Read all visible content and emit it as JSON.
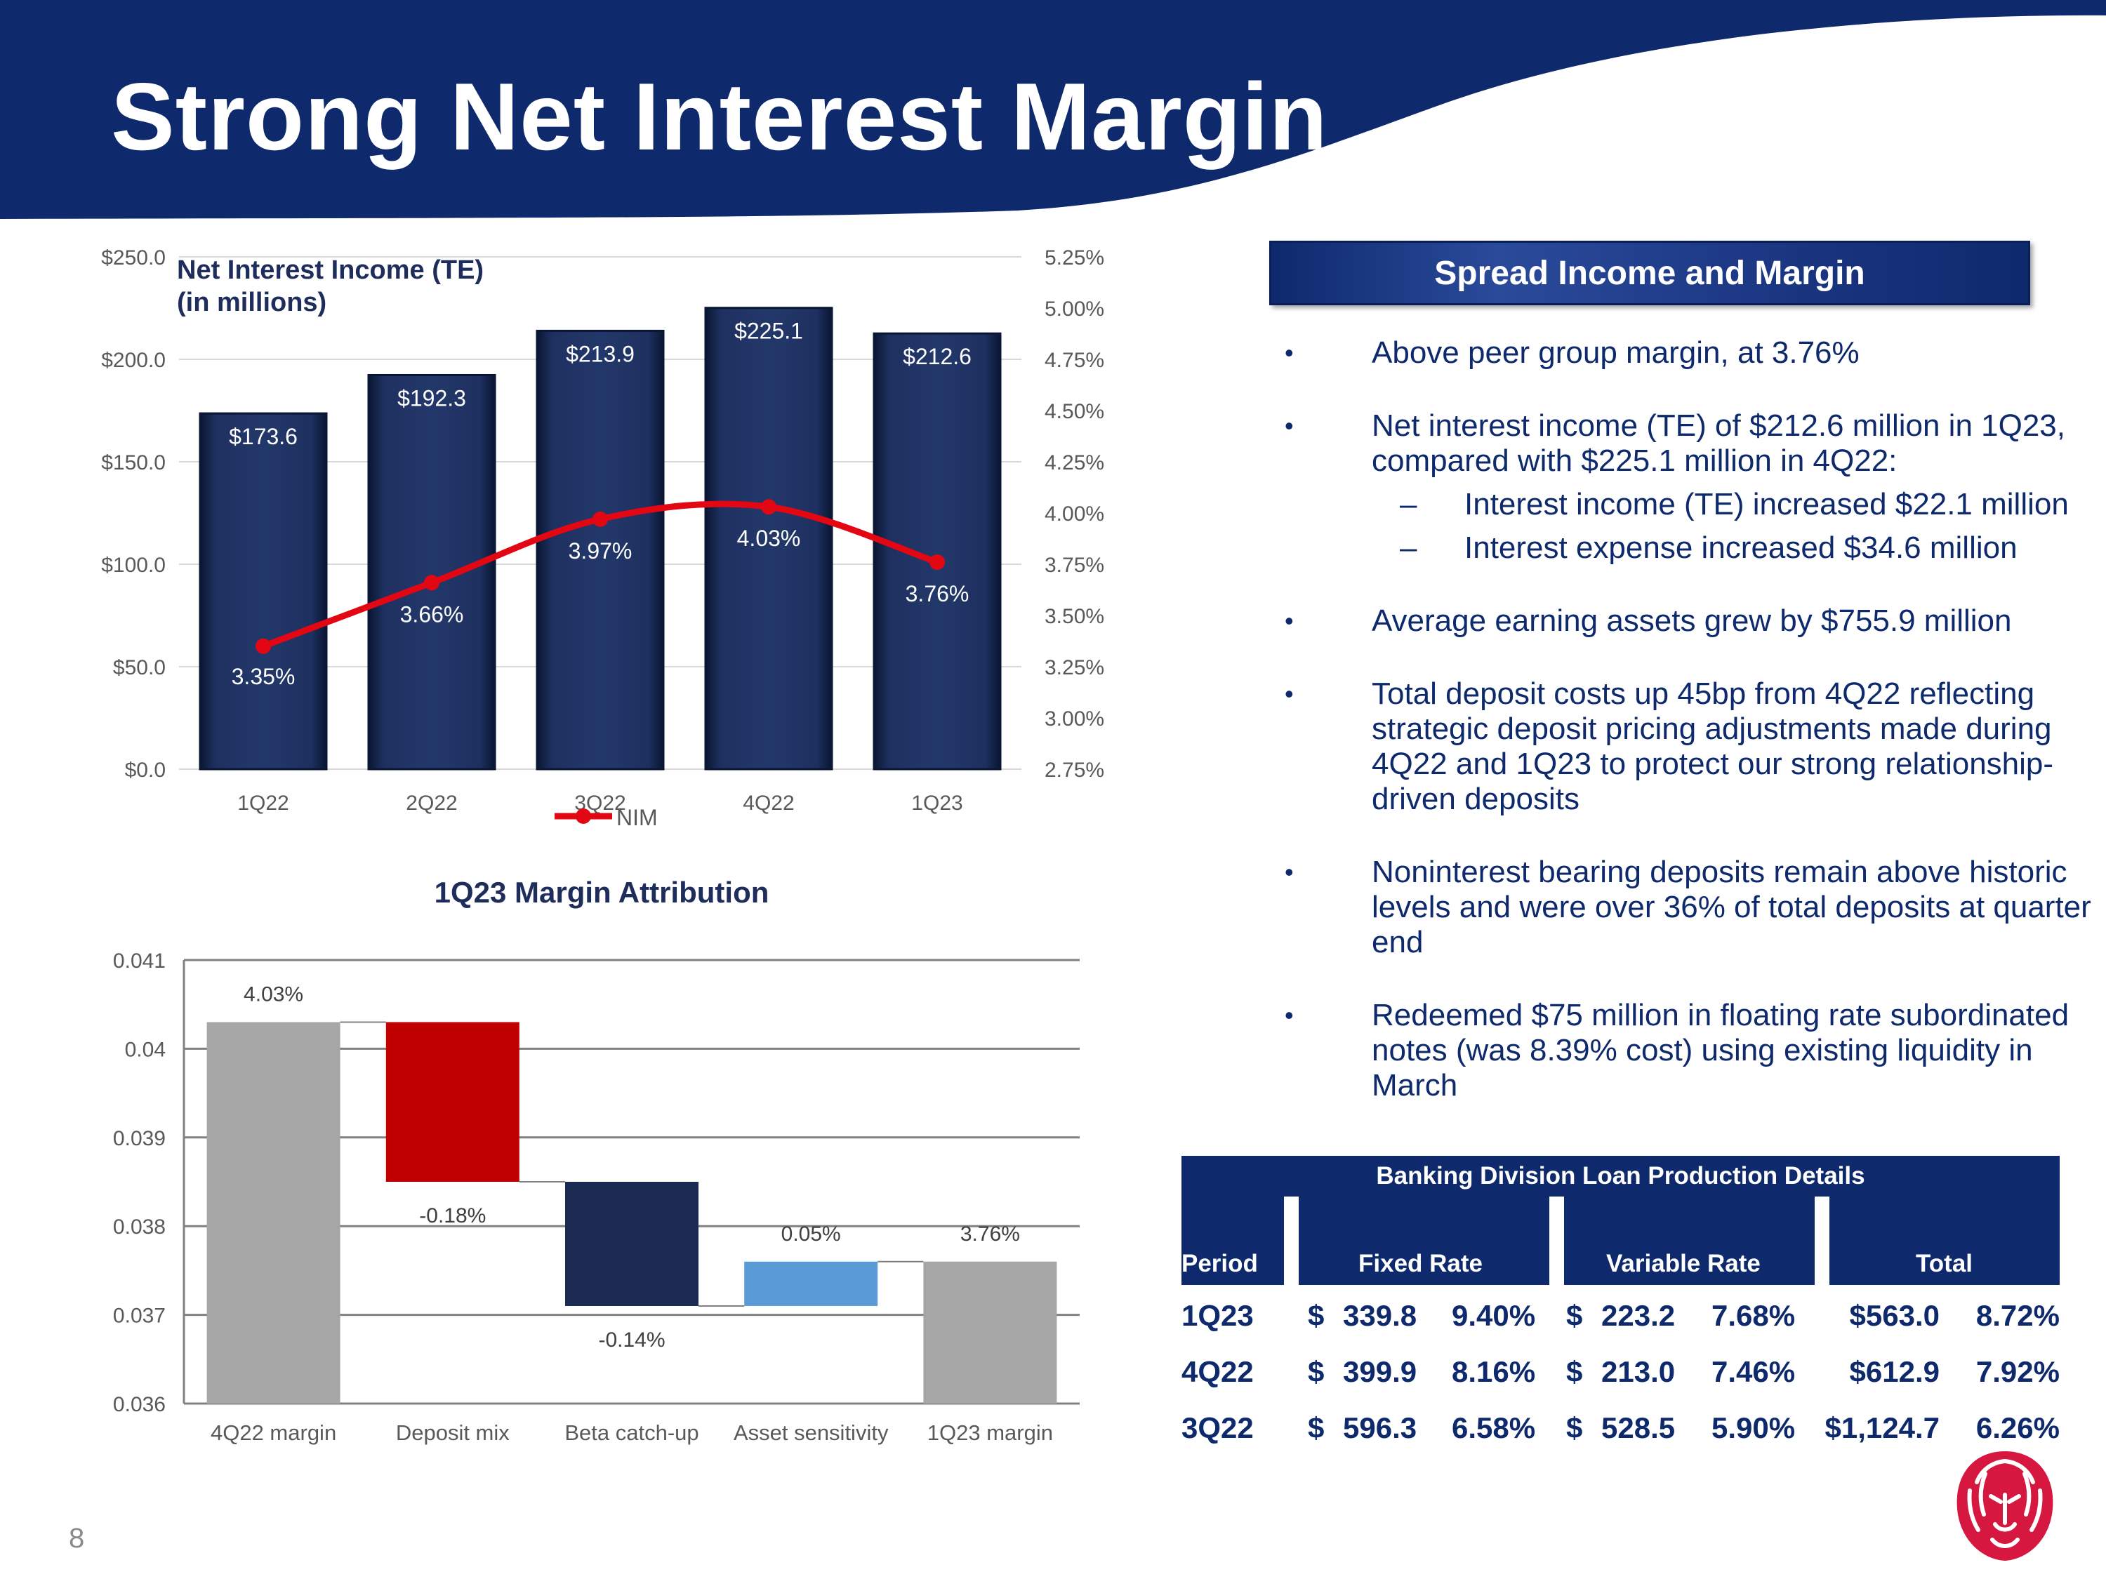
{
  "title": "Strong Net Interest Margin",
  "page_number": "8",
  "colors": {
    "navy": "#0e2a6d",
    "bar_navy": "#1a2a52",
    "nim_red": "#e30613",
    "waterfall_gray": "#a6a6a6",
    "waterfall_red": "#c00000",
    "waterfall_blue": "#5b9bd5",
    "logo_red": "#d6173f"
  },
  "chart_data": [
    {
      "type": "bar",
      "title": "Net Interest Income (TE)",
      "subtitle": "(in millions)",
      "categories": [
        "1Q22",
        "2Q22",
        "3Q22",
        "4Q22",
        "1Q23"
      ],
      "values": [
        173.6,
        192.3,
        213.9,
        225.1,
        212.6
      ],
      "value_labels": [
        "$173.6",
        "$192.3",
        "$213.9",
        "$225.1",
        "$212.6"
      ],
      "ylim": [
        0,
        250
      ],
      "yticks": [
        "$0.0",
        "$50.0",
        "$100.0",
        "$150.0",
        "$200.0",
        "$250.0"
      ],
      "secondary": {
        "type": "line",
        "name": "NIM",
        "values": [
          3.35,
          3.66,
          3.97,
          4.03,
          3.76
        ],
        "value_labels": [
          "3.35%",
          "3.66%",
          "3.97%",
          "4.03%",
          "3.76%"
        ],
        "ylim": [
          2.75,
          5.25
        ],
        "yticks": [
          "2.75%",
          "3.00%",
          "3.25%",
          "3.50%",
          "3.75%",
          "4.00%",
          "4.25%",
          "4.50%",
          "4.75%",
          "5.00%",
          "5.25%"
        ]
      },
      "legend": "NIM",
      "legend_position": "bottom"
    },
    {
      "type": "waterfall",
      "title": "1Q23 Margin Attribution",
      "categories": [
        "4Q22 margin",
        "Deposit mix",
        "Beta catch-up",
        "Asset sensitivity",
        "1Q23 margin"
      ],
      "values": [
        0.0403,
        -0.0018,
        -0.0014,
        0.0005,
        0.0376
      ],
      "value_labels": [
        "4.03%",
        "-0.18%",
        "-0.14%",
        "0.05%",
        "3.76%"
      ],
      "ylim": [
        0.036,
        0.041
      ],
      "yticks": [
        "0.036",
        "0.037",
        "0.038",
        "0.039",
        "0.04",
        "0.041"
      ]
    }
  ],
  "spread": {
    "header": "Spread Income and Margin",
    "bullet_char": "•",
    "dash_char": "–",
    "b1": "Above peer group margin, at 3.76%",
    "b2": "Net interest income (TE)  of $212.6 million in 1Q23, compared with $225.1 million in 4Q22:",
    "b2_sub1": "Interest income (TE) increased $22.1 million",
    "b2_sub2": "Interest expense increased $34.6 million",
    "b3": "Average earning assets grew by $755.9 million",
    "b4": "Total deposit costs up 45bp from 4Q22 reflecting strategic deposit pricing adjustments made during 4Q22 and 1Q23 to protect our strong relationship-driven deposits",
    "b5": "Noninterest bearing deposits remain above historic levels and were over 36% of total deposits at quarter end",
    "b6": "Redeemed $75 million in floating rate subordinated notes (was 8.39% cost) using existing liquidity in March"
  },
  "loan_table": {
    "title": "Banking Division Loan Production Details",
    "headers": {
      "period": "Period",
      "fixed": "Fixed Rate",
      "variable": "Variable Rate",
      "total": "Total"
    },
    "rows": [
      {
        "period": "1Q23",
        "fixed_sym": "$",
        "fixed_amt": "339.8",
        "fixed_rate": "9.40%",
        "var_sym": "$",
        "var_amt": "223.2",
        "var_rate": "7.68%",
        "total_amt": "$563.0",
        "total_rate": "8.72%"
      },
      {
        "period": "4Q22",
        "fixed_sym": "$",
        "fixed_amt": "399.9",
        "fixed_rate": "8.16%",
        "var_sym": "$",
        "var_amt": "213.0",
        "var_rate": "7.46%",
        "total_amt": "$612.9",
        "total_rate": "7.92%"
      },
      {
        "period": "3Q22",
        "fixed_sym": "$",
        "fixed_amt": "596.3",
        "fixed_rate": "6.58%",
        "var_sym": "$",
        "var_amt": "528.5",
        "var_rate": "5.90%",
        "total_amt": "$1,124.7",
        "total_rate": "6.26%"
      }
    ]
  }
}
